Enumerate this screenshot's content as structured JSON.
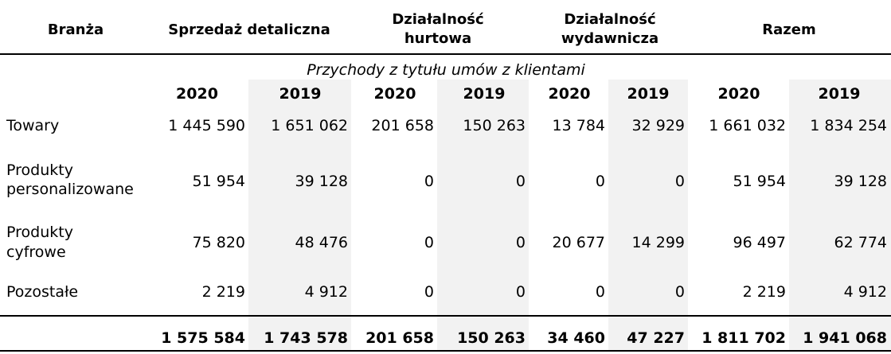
{
  "header": {
    "branza": "Branża",
    "retail": "Sprzedaż detaliczna",
    "wholesale_1": "Działalność",
    "wholesale_2": "hurtowa",
    "publishing_1": "Działalność",
    "publishing_2": "wydawnicza",
    "total": "Razem"
  },
  "subheader": "Przychody z tytułu umów z klientami",
  "years": [
    "2020",
    "2019",
    "2020",
    "2019",
    "2020",
    "2019",
    "2020",
    "2019"
  ],
  "rows": [
    {
      "label_1": "Towary",
      "label_2": "",
      "values": [
        "1 445 590",
        "1 651 062",
        "201 658",
        "150 263",
        "13 784",
        "32 929",
        "1 661 032",
        "1 834 254"
      ]
    },
    {
      "label_1": "Produkty",
      "label_2": "personalizowane",
      "values": [
        "51 954",
        "39 128",
        "0",
        "0",
        "0",
        "0",
        "51 954",
        "39 128"
      ]
    },
    {
      "label_1": "Produkty",
      "label_2": "cyfrowe",
      "values": [
        "75 820",
        "48 476",
        "0",
        "0",
        "20 677",
        "14 299",
        "96 497",
        "62 774"
      ]
    },
    {
      "label_1": "Pozostałe",
      "label_2": "",
      "values": [
        "2 219",
        "4 912",
        "0",
        "0",
        "0",
        "0",
        "2 219",
        "4 912"
      ]
    }
  ],
  "totals": [
    "1 575 584",
    "1 743 578",
    "201 658",
    "150 263",
    "34 460",
    "47 227",
    "1 811 702",
    "1 941 068"
  ]
}
